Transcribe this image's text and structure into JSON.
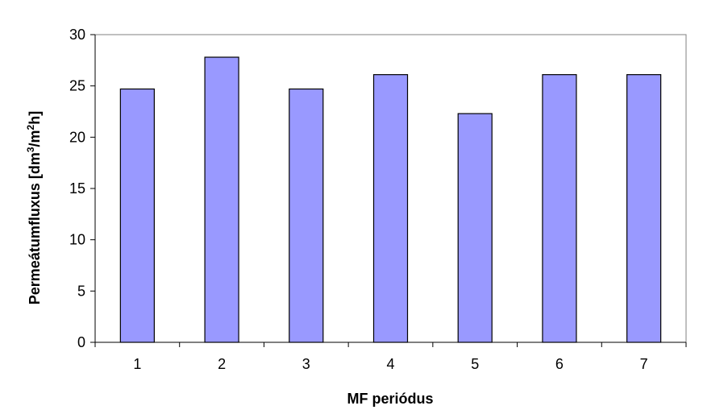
{
  "chart_data": {
    "type": "bar",
    "title": "",
    "xlabel": "MF periódus",
    "ylabel": {
      "prefix": "Permeátumfluxus  [dm",
      "sup1": "3",
      "mid": "/m",
      "sup2": "2",
      "suffix": "h]"
    },
    "categories": [
      "1",
      "2",
      "3",
      "4",
      "5",
      "6",
      "7"
    ],
    "values": [
      24.7,
      27.8,
      24.7,
      26.1,
      22.3,
      26.1,
      26.1
    ],
    "ylim": [
      0,
      30
    ],
    "yticks": [
      0,
      5,
      10,
      15,
      20,
      25,
      30
    ],
    "grid": false,
    "legend": "none",
    "colors": {
      "bar_fill": "#9999ff",
      "bar_stroke": "#000000",
      "axis": "#000000",
      "plot_border": "#808080",
      "background": "#ffffff"
    }
  }
}
